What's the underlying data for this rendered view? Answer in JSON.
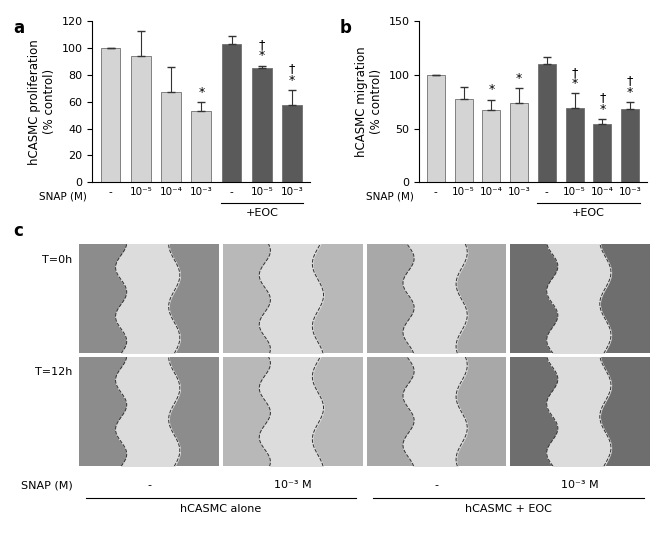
{
  "chart_data": [
    {
      "type": "bar",
      "panel_label": "a",
      "y_label": "hCASMC proliferation\n(% control)",
      "x_label": "SNAP (M)",
      "categories": [
        "-",
        "10⁻⁵",
        "10⁻⁴",
        "10⁻³",
        "-",
        "10⁻⁵",
        "10⁻³"
      ],
      "groups": [
        null,
        null,
        null,
        null,
        "+EOC",
        "+EOC",
        "+EOC"
      ],
      "values": [
        100,
        94,
        67,
        53,
        103,
        85,
        58
      ],
      "errors": [
        0,
        19,
        19,
        7,
        6,
        2,
        11
      ],
      "annotations": [
        null,
        null,
        null,
        [
          "*"
        ],
        null,
        [
          "*",
          "†"
        ],
        [
          "*",
          "†"
        ]
      ],
      "colors": [
        "#d4d4d4",
        "#d4d4d4",
        "#d4d4d4",
        "#d4d4d4",
        "#5a5a5a",
        "#5a5a5a",
        "#5a5a5a"
      ],
      "ylim": [
        0,
        120
      ],
      "yticks": [
        0,
        20,
        40,
        60,
        80,
        100,
        120
      ]
    },
    {
      "type": "bar",
      "panel_label": "b",
      "y_label": "hCASMC migration\n(% control)",
      "x_label": "SNAP (M)",
      "categories": [
        "-",
        "10⁻⁵",
        "10⁻⁴",
        "10⁻³",
        "-",
        "10⁻⁵",
        "10⁻⁴",
        "10⁻³"
      ],
      "groups": [
        null,
        null,
        null,
        null,
        "+EOC",
        "+EOC",
        "+EOC",
        "+EOC"
      ],
      "values": [
        100,
        78,
        67,
        74,
        110,
        69,
        54,
        68
      ],
      "errors": [
        0,
        11,
        10,
        14,
        7,
        14,
        5,
        7
      ],
      "annotations": [
        null,
        null,
        [
          "*"
        ],
        [
          "*"
        ],
        null,
        [
          "*",
          "†"
        ],
        [
          "*",
          "†"
        ],
        [
          "*",
          "†"
        ]
      ],
      "colors": [
        "#d4d4d4",
        "#d4d4d4",
        "#d4d4d4",
        "#d4d4d4",
        "#5a5a5a",
        "#5a5a5a",
        "#5a5a5a",
        "#5a5a5a"
      ],
      "ylim": [
        0,
        150
      ],
      "yticks": [
        0,
        50,
        100,
        150
      ]
    }
  ],
  "panel_c": {
    "panel_label": "c",
    "row_labels": [
      "T=0h",
      "T=12h"
    ],
    "x_label": "SNAP (M)",
    "column_labels": [
      "-",
      "10⁻³ M",
      "-",
      "10⁻³ M"
    ],
    "column_groups": [
      "hCASMC alone",
      "hCASMC alone",
      "hCASMC + EOC",
      "hCASMC + EOC"
    ]
  }
}
